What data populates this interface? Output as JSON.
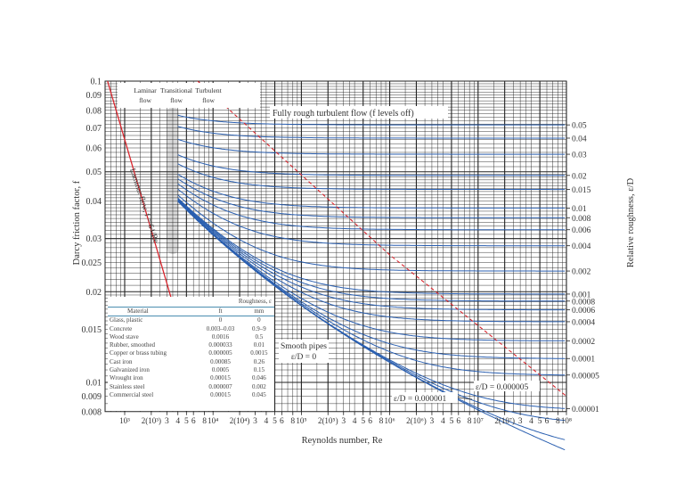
{
  "chart_data": {
    "type": "line",
    "title": "",
    "xlabel": "Reynolds number, Re",
    "ylabel": "Darcy friction factor, f",
    "y2label": "Relative roughness, ε/D",
    "x_scale": "log",
    "y_scale": "log",
    "xlim": [
      600,
      100000000
    ],
    "ylim": [
      0.008,
      0.1
    ],
    "grid": true,
    "x_tick_labels": [
      {
        "value": 1000,
        "label": "10³"
      },
      {
        "value": 2000,
        "label": "2(10³)"
      },
      {
        "value": 3000,
        "label": "3"
      },
      {
        "value": 4000,
        "label": "4"
      },
      {
        "value": 5000,
        "label": "5"
      },
      {
        "value": 6000,
        "label": "6"
      },
      {
        "value": 8000,
        "label": "8"
      },
      {
        "value": 10000,
        "label": "10⁴"
      },
      {
        "value": 20000,
        "label": "2(10⁴)"
      },
      {
        "value": 30000,
        "label": "3"
      },
      {
        "value": 40000,
        "label": "4"
      },
      {
        "value": 50000,
        "label": "5"
      },
      {
        "value": 60000,
        "label": "6"
      },
      {
        "value": 80000,
        "label": "8"
      },
      {
        "value": 100000,
        "label": "10⁵"
      },
      {
        "value": 200000,
        "label": "2(10⁵)"
      },
      {
        "value": 300000,
        "label": "3"
      },
      {
        "value": 400000,
        "label": "4"
      },
      {
        "value": 500000,
        "label": "5"
      },
      {
        "value": 600000,
        "label": "6"
      },
      {
        "value": 800000,
        "label": "8"
      },
      {
        "value": 1000000,
        "label": "10⁶"
      },
      {
        "value": 2000000,
        "label": "2(10⁶)"
      },
      {
        "value": 3000000,
        "label": "3"
      },
      {
        "value": 4000000,
        "label": "4"
      },
      {
        "value": 5000000,
        "label": "5"
      },
      {
        "value": 6000000,
        "label": "6"
      },
      {
        "value": 8000000,
        "label": "8"
      },
      {
        "value": 10000000,
        "label": "10⁷"
      },
      {
        "value": 20000000,
        "label": "2(10⁷)"
      },
      {
        "value": 30000000,
        "label": "3"
      },
      {
        "value": 40000000,
        "label": "4"
      },
      {
        "value": 50000000,
        "label": "5"
      },
      {
        "value": 60000000,
        "label": "6"
      },
      {
        "value": 80000000,
        "label": "8"
      },
      {
        "value": 100000000,
        "label": "10⁸"
      }
    ],
    "y_tick_labels": [
      "0.1",
      "0.09",
      "0.08",
      "0.07",
      "0.06",
      "0.05",
      "0.04",
      "0.03",
      "0.025",
      "0.02",
      "0.015",
      "0.01",
      "0.009",
      "0.008"
    ],
    "relative_roughness_labels": [
      "0.05",
      "0.04",
      "0.03",
      "0.02",
      "0.015",
      "0.01",
      "0.008",
      "0.006",
      "0.004",
      "0.002",
      "0.001",
      "0.0008",
      "0.0006",
      "0.0004",
      "0.0002",
      "0.0001",
      "0.00005",
      "0.00001"
    ],
    "roughness_series": [
      0.05,
      0.04,
      0.03,
      0.02,
      0.015,
      0.01,
      0.008,
      0.006,
      0.004,
      0.002,
      0.001,
      0.0008,
      0.0006,
      0.0004,
      0.0002,
      0.0001,
      5e-05,
      1e-05,
      5e-06,
      1e-06,
      0
    ],
    "turbulent_re_range": [
      4000,
      100000000
    ],
    "laminar_line": {
      "formula": "f = 64/Re",
      "re_range": [
        640,
        4000
      ]
    },
    "fully_rough_boundary": {
      "re": [
        6700,
        1000000,
        100000000
      ],
      "f": [
        0.1,
        0.0265,
        0.009
      ]
    },
    "annotations": {
      "laminar_region": "Laminar flow",
      "transitional_region": "Transitional flow",
      "turbulent_region": "Turbulent flow",
      "fully_rough": "Fully rough turbulent flow (f levels off)",
      "laminar_line": "Laminar flow, f = 64/Re",
      "smooth_line1": "Smooth pipes",
      "smooth_line2": "ε/D = 0",
      "ed_000001": "ε/D = 0.000001",
      "ed_000005": "ε/D = 0.000005"
    },
    "colors": {
      "curves": "#2a5fb0",
      "laminar": "#d9262e",
      "boundary": "#d9262e",
      "grid": "#222222"
    }
  },
  "roughness_table": {
    "title": "Roughness, ε",
    "headers": [
      "Material",
      "ft",
      "mm"
    ],
    "rows": [
      [
        "Glass, plastic",
        "0",
        "0"
      ],
      [
        "Concrete",
        "0.003–0.03",
        "0.9–9"
      ],
      [
        "Wood stave",
        "0.0016",
        "0.5"
      ],
      [
        "Rubber, smoothed",
        "0.000033",
        "0.01"
      ],
      [
        "Copper or brass tubing",
        "0.000005",
        "0.0015"
      ],
      [
        "Cast iron",
        "0.00085",
        "0.26"
      ],
      [
        "Galvanized iron",
        "0.0005",
        "0.15"
      ],
      [
        "Wrought iron",
        "0.00015",
        "0.046"
      ],
      [
        "Stainless steel",
        "0.000007",
        "0.002"
      ],
      [
        "Commercial steel",
        "0.00015",
        "0.045"
      ]
    ]
  }
}
